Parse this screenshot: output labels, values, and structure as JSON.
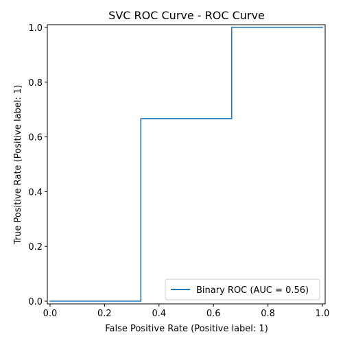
{
  "chart_data": {
    "type": "line",
    "title": "SVC ROC Curve - ROC Curve",
    "xlabel": "False Positive Rate (Positive label: 1)",
    "ylabel": "True Positive Rate (Positive label: 1)",
    "xlim": [
      -0.01,
      1.01
    ],
    "ylim": [
      -0.01,
      1.01
    ],
    "xticks": [
      0.0,
      0.2,
      0.4,
      0.6,
      0.8,
      1.0
    ],
    "xtick_labels": [
      "0.0",
      "0.2",
      "0.4",
      "0.6",
      "0.8",
      "1.0"
    ],
    "yticks": [
      0.0,
      0.2,
      0.4,
      0.6,
      0.8,
      1.0
    ],
    "ytick_labels": [
      "0.0",
      "0.2",
      "0.4",
      "0.6",
      "0.8",
      "1.0"
    ],
    "grid": false,
    "legend_position": "lower-right",
    "series": [
      {
        "name": "Binary ROC (AUC = 0.56)",
        "color": "#1f77b4",
        "drawstyle": "steps",
        "x": [
          0.0,
          0.0,
          0.3333,
          0.3333,
          0.6667,
          0.6667,
          1.0
        ],
        "y": [
          0.0,
          0.0,
          0.0,
          0.6667,
          0.6667,
          1.0,
          1.0
        ]
      }
    ]
  }
}
